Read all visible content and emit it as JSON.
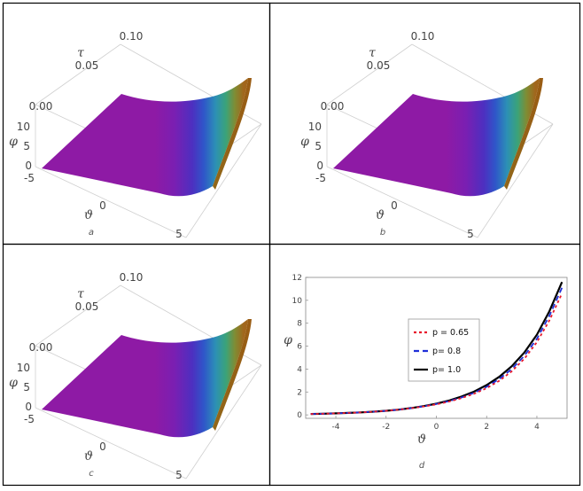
{
  "panels": [
    {
      "id": "a",
      "label": "a",
      "tau_label": "τ",
      "phi_label": "φ",
      "theta_label": "ϑ",
      "tau_ticks": [
        "0.10",
        "0.05",
        "0.00"
      ],
      "phi_ticks": [
        "10",
        "5",
        "0"
      ],
      "theta_ticks": [
        "-5",
        "0",
        "5"
      ]
    },
    {
      "id": "b",
      "label": "b",
      "tau_label": "τ",
      "phi_label": "φ",
      "theta_label": "ϑ",
      "tau_ticks": [
        "0.10",
        "0.05",
        "0.00"
      ],
      "phi_ticks": [
        "10",
        "5",
        "0"
      ],
      "theta_ticks": [
        "-5",
        "0",
        "5"
      ]
    },
    {
      "id": "c",
      "label": "c",
      "tau_label": "τ",
      "phi_label": "φ",
      "theta_label": "ϑ",
      "tau_ticks": [
        "0.10",
        "0.05",
        "0.00"
      ],
      "phi_ticks": [
        "10",
        "5",
        "0"
      ],
      "theta_ticks": [
        "-5",
        "0",
        "5"
      ]
    }
  ],
  "chart_data": [
    {
      "type": "surface3d",
      "panel": "a",
      "xlabel": "ϑ",
      "ylabel": "τ",
      "zlabel": "φ",
      "xlim": [
        -5,
        5
      ],
      "ylim": [
        0,
        0.1
      ],
      "zlim": [
        0,
        12
      ]
    },
    {
      "type": "surface3d",
      "panel": "b",
      "xlabel": "ϑ",
      "ylabel": "τ",
      "zlabel": "φ",
      "xlim": [
        -5,
        5
      ],
      "ylim": [
        0,
        0.1
      ],
      "zlim": [
        0,
        12
      ]
    },
    {
      "type": "surface3d",
      "panel": "c",
      "xlabel": "ϑ",
      "ylabel": "τ",
      "zlabel": "φ",
      "xlim": [
        -5,
        5
      ],
      "ylim": [
        0,
        0.1
      ],
      "zlim": [
        0,
        12
      ]
    },
    {
      "type": "line",
      "panel": "d",
      "panel_label": "d",
      "xlabel": "ϑ",
      "ylabel": "φ",
      "xlim": [
        -5.2,
        5.2
      ],
      "ylim": [
        -0.3,
        12
      ],
      "xticks": [
        -4,
        -2,
        0,
        2,
        4
      ],
      "yticks": [
        0,
        2,
        4,
        6,
        8,
        10,
        12
      ],
      "legend_position": "center",
      "x": [
        -5,
        -4.5,
        -4,
        -3.5,
        -3,
        -2.5,
        -2,
        -1.5,
        -1,
        -0.5,
        0,
        0.5,
        1,
        1.5,
        2,
        2.5,
        3,
        3.5,
        4,
        4.5,
        5
      ],
      "series": [
        {
          "name": "p = 0.65",
          "color": "#e8192c",
          "dash": "3,3",
          "values": [
            0.08,
            0.1,
            0.13,
            0.17,
            0.22,
            0.28,
            0.36,
            0.46,
            0.58,
            0.74,
            0.92,
            1.16,
            1.46,
            1.84,
            2.33,
            2.97,
            3.8,
            4.9,
            6.35,
            8.25,
            10.6
          ]
        },
        {
          "name": "p= 0.8",
          "color": "#1f2fd8",
          "dash": "6,4",
          "values": [
            0.08,
            0.1,
            0.13,
            0.17,
            0.22,
            0.28,
            0.36,
            0.46,
            0.59,
            0.75,
            0.95,
            1.2,
            1.52,
            1.92,
            2.45,
            3.13,
            4.0,
            5.15,
            6.65,
            8.65,
            11.1
          ]
        },
        {
          "name": "p= 1.0",
          "color": "#000000",
          "dash": "",
          "values": [
            0.08,
            0.1,
            0.13,
            0.17,
            0.22,
            0.28,
            0.36,
            0.46,
            0.6,
            0.77,
            0.98,
            1.25,
            1.6,
            2.03,
            2.6,
            3.32,
            4.25,
            5.45,
            7.0,
            9.05,
            11.6
          ]
        }
      ]
    }
  ]
}
